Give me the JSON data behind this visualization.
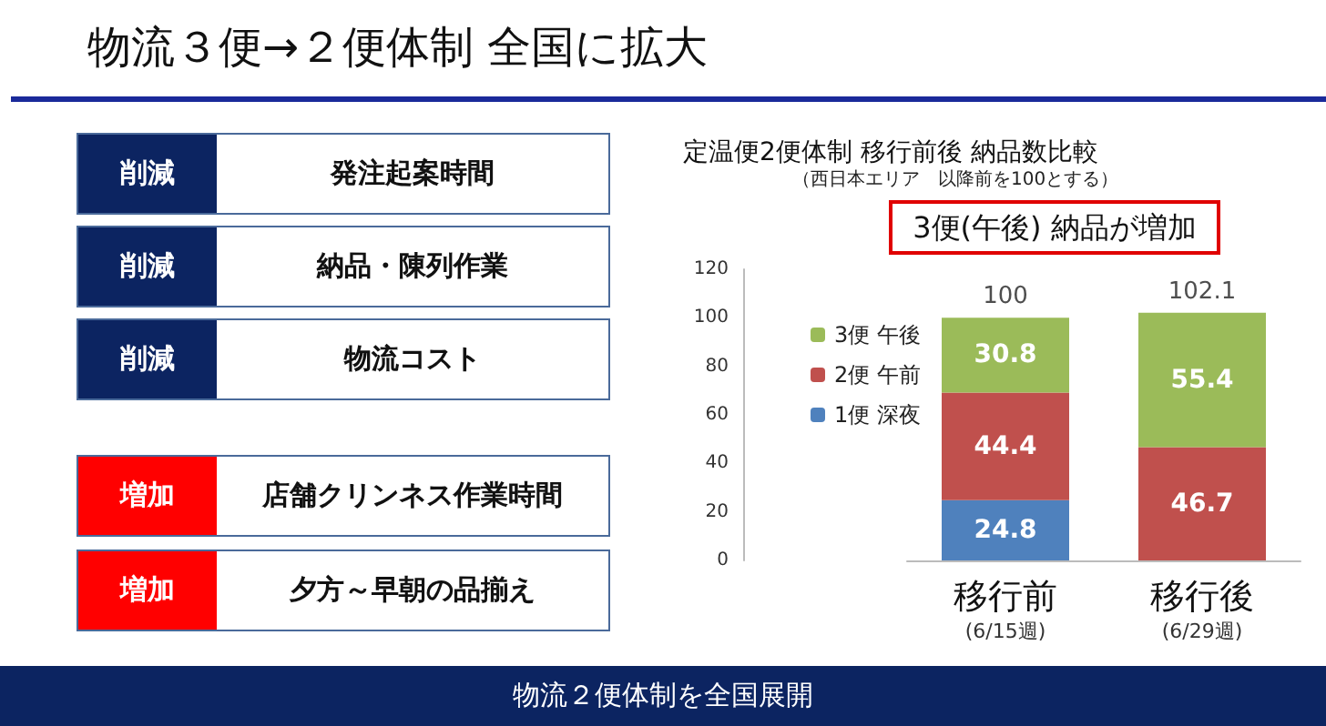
{
  "chart_data": [
    {
      "type": "other",
      "title": "物流３便→２便体制 全国に拡大",
      "annotations": [
        "削減",
        "発注起案時間",
        "削減",
        "納品・陳列作業",
        "削減",
        "物流コスト",
        "増加",
        "店舗クリンネス作業時間",
        "増加",
        "夕方～早朝の品揃え",
        "物流２便体制を全国展開"
      ]
    },
    {
      "type": "bar",
      "title": "定温便2便体制 移行前後 納品数比較",
      "subtitle": "（西日本エリア　以降前を100とする）",
      "annotations": [
        "3便(午後) 納品が増加"
      ],
      "categories": [
        "移行前\n(6/15週)",
        "移行後\n(6/29週)"
      ],
      "stacked": true,
      "data_labels": true,
      "totals": [
        "100",
        "102.1"
      ],
      "series": [
        {
          "name": "1便 深夜",
          "color": "#4f81bd",
          "values": [
            24.8,
            null
          ]
        },
        {
          "name": "2便 午前",
          "color": "#c0504d",
          "values": [
            44.4,
            46.7
          ]
        },
        {
          "name": "3便 午後",
          "color": "#9bbb59",
          "values": [
            30.8,
            55.4
          ]
        }
      ],
      "ylim": [
        0,
        120
      ],
      "yticks": [
        0,
        20,
        40,
        60,
        80,
        100,
        120
      ],
      "legend": "left"
    }
  ]
}
